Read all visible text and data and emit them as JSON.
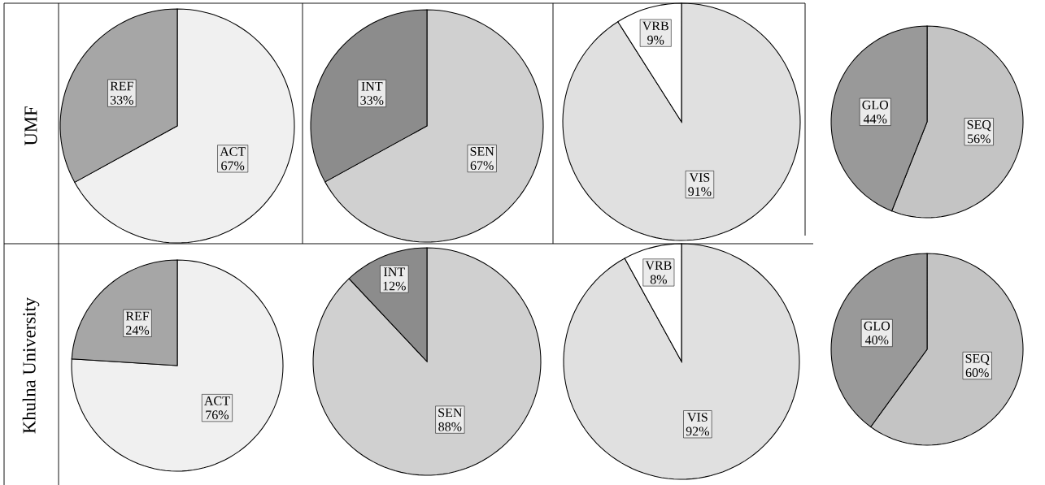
{
  "chart_data": [
    {
      "type": "pie",
      "ylabel": "UMF",
      "categories": [
        "ACT",
        "REF"
      ],
      "values": [
        67,
        33
      ],
      "value_labels": [
        "67%",
        "33%"
      ],
      "colors": [
        "#f0f0f0",
        "#a6a6a6"
      ]
    },
    {
      "type": "pie",
      "categories": [
        "SEN",
        "INT"
      ],
      "values": [
        67,
        33
      ],
      "value_labels": [
        "67%",
        "33%"
      ],
      "colors": [
        "#d0d0d0",
        "#8c8c8c"
      ]
    },
    {
      "type": "pie",
      "categories": [
        "VIS",
        "VRB"
      ],
      "values": [
        91,
        9
      ],
      "value_labels": [
        "91%",
        "9%"
      ],
      "colors": [
        "#e0e0e0",
        "#ffffff"
      ]
    },
    {
      "type": "pie",
      "categories": [
        "SEQ",
        "GLO"
      ],
      "values": [
        56,
        44
      ],
      "value_labels": [
        "56%",
        "44%"
      ],
      "colors": [
        "#c4c4c4",
        "#999999"
      ]
    },
    {
      "type": "pie",
      "ylabel": "Khulna University",
      "categories": [
        "ACT",
        "REF"
      ],
      "values": [
        76,
        24
      ],
      "value_labels": [
        "76%",
        "24%"
      ],
      "colors": [
        "#f0f0f0",
        "#a6a6a6"
      ]
    },
    {
      "type": "pie",
      "categories": [
        "SEN",
        "INT"
      ],
      "values": [
        88,
        12
      ],
      "value_labels": [
        "88%",
        "12%"
      ],
      "colors": [
        "#d0d0d0",
        "#8c8c8c"
      ]
    },
    {
      "type": "pie",
      "categories": [
        "VIS",
        "VRB"
      ],
      "values": [
        92,
        8
      ],
      "value_labels": [
        "92%",
        "8%"
      ],
      "colors": [
        "#e0e0e0",
        "#ffffff"
      ]
    },
    {
      "type": "pie",
      "categories": [
        "SEQ",
        "GLO"
      ],
      "values": [
        60,
        40
      ],
      "value_labels": [
        "60%",
        "40%"
      ],
      "colors": [
        "#c4c4c4",
        "#999999"
      ]
    }
  ]
}
